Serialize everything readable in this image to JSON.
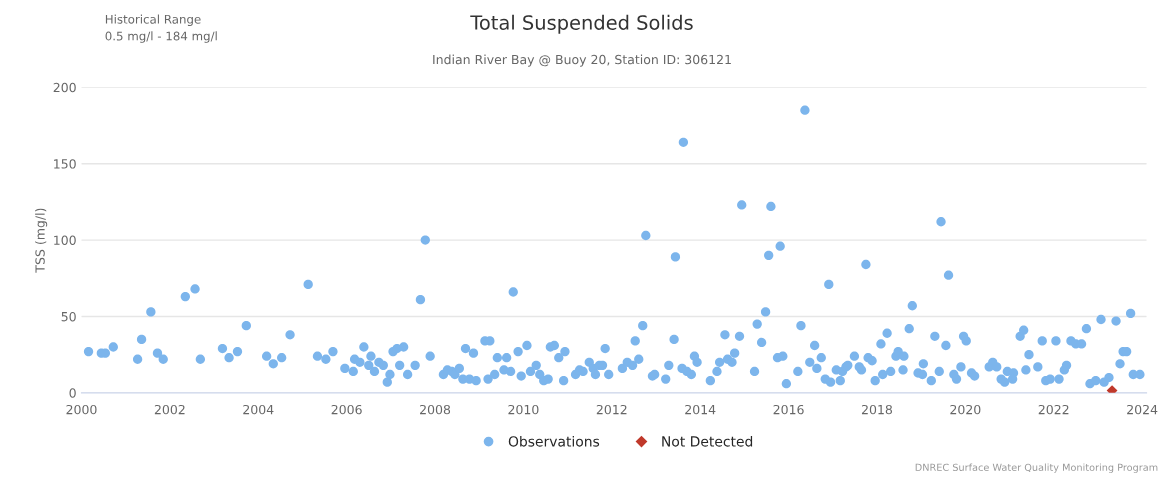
{
  "chart_data": {
    "type": "scatter",
    "title": "Total Suspended Solids",
    "subtitle": "Indian River Bay @ Buoy 20, Station ID: 306121",
    "ylabel": "TSS (mg/l)",
    "annotations": [
      "Historical Range\n0.5 mg/l - 184 mg/l",
      "DNREC Surface Water Quality Monitoring Program"
    ],
    "xlim": [
      2000,
      2024.1
    ],
    "xticks": [
      2000,
      2002,
      2004,
      2006,
      2008,
      2010,
      2012,
      2014,
      2016,
      2018,
      2020,
      2022,
      2024
    ],
    "ylim": [
      0,
      200
    ],
    "yticks": [
      0,
      50,
      100,
      150,
      200
    ],
    "grid": "y",
    "legend": "bottom",
    "series": [
      {
        "name": "Observations",
        "color": "#7cb5ec",
        "marker": "circle",
        "x": [
          2000.16,
          2000.45,
          2000.54,
          2000.72,
          2001.27,
          2001.36,
          2001.57,
          2001.72,
          2001.85,
          2002.35,
          2002.57,
          2002.69,
          2003.19,
          2003.34,
          2003.53,
          2003.73,
          2004.19,
          2004.34,
          2004.53,
          2004.72,
          2005.13,
          2005.34,
          2005.53,
          2005.69,
          2005.96,
          2006.15,
          2006.18,
          2006.3,
          2006.39,
          2006.5,
          2006.55,
          2006.63,
          2006.73,
          2006.83,
          2006.92,
          2006.98,
          2007.05,
          2007.14,
          2007.29,
          2007.2,
          2007.38,
          2007.55,
          2007.67,
          2007.78,
          2007.89,
          2008.19,
          2008.28,
          2008.38,
          2008.45,
          2008.55,
          2008.63,
          2008.69,
          2008.78,
          2008.87,
          2008.93,
          2009.13,
          2009.24,
          2009.2,
          2009.35,
          2009.41,
          2009.56,
          2009.62,
          2009.71,
          2009.77,
          2009.88,
          2009.95,
          2010.08,
          2010.16,
          2010.29,
          2010.37,
          2010.46,
          2010.56,
          2010.61,
          2010.7,
          2010.8,
          2010.94,
          2010.91,
          2011.18,
          2011.27,
          2011.35,
          2011.49,
          2011.58,
          2011.63,
          2011.72,
          2011.79,
          2011.85,
          2011.93,
          2012.24,
          2012.35,
          2012.47,
          2012.53,
          2012.61,
          2012.7,
          2012.77,
          2012.92,
          2012.97,
          2013.22,
          2013.29,
          2013.41,
          2013.44,
          2013.59,
          2013.62,
          2013.7,
          2013.8,
          2013.87,
          2013.93,
          2014.23,
          2014.38,
          2014.44,
          2014.56,
          2014.62,
          2014.72,
          2014.78,
          2014.89,
          2014.94,
          2015.23,
          2015.29,
          2015.39,
          2015.48,
          2015.55,
          2015.6,
          2015.75,
          2015.81,
          2015.87,
          2015.95,
          2016.21,
          2016.28,
          2016.37,
          2016.48,
          2016.59,
          2016.64,
          2016.74,
          2016.83,
          2016.91,
          2016.95,
          2017.08,
          2017.17,
          2017.22,
          2017.3,
          2017.34,
          2017.49,
          2017.6,
          2017.65,
          2017.75,
          2017.8,
          2017.89,
          2017.96,
          2018.09,
          2018.13,
          2018.23,
          2018.31,
          2018.43,
          2018.48,
          2018.61,
          2018.59,
          2018.73,
          2018.8,
          2018.93,
          2019.05,
          2019.03,
          2019.23,
          2019.31,
          2019.41,
          2019.45,
          2019.56,
          2019.62,
          2019.74,
          2019.8,
          2019.9,
          2019.96,
          2020.02,
          2020.14,
          2020.21,
          2020.54,
          2020.62,
          2020.71,
          2020.81,
          2020.89,
          2020.95,
          2021.09,
          2021.07,
          2021.24,
          2021.32,
          2021.37,
          2021.44,
          2021.64,
          2021.74,
          2021.82,
          2021.92,
          2022.05,
          2022.12,
          2022.24,
          2022.29,
          2022.39,
          2022.5,
          2022.63,
          2022.74,
          2022.82,
          2022.95,
          2023.07,
          2023.14,
          2023.25,
          2023.41,
          2023.5,
          2023.57,
          2023.65,
          2023.74,
          2023.8,
          2023.95
        ],
        "values": [
          27,
          26,
          26,
          30,
          22,
          35,
          53,
          26,
          22,
          63,
          68,
          22,
          29,
          23,
          27,
          44,
          24,
          19,
          23,
          38,
          71,
          24,
          22,
          27,
          16,
          14,
          22,
          20,
          30,
          18,
          24,
          14,
          20,
          18,
          7,
          12,
          27,
          29,
          30,
          18,
          12,
          18,
          61,
          100,
          24,
          12,
          15,
          14,
          12,
          16,
          9,
          29,
          9,
          26,
          8,
          34,
          34,
          9,
          12,
          23,
          15,
          23,
          14,
          66,
          27,
          11,
          31,
          14,
          18,
          12,
          8,
          9,
          30,
          31,
          23,
          27,
          8,
          12,
          15,
          14,
          20,
          16,
          12,
          18,
          18,
          29,
          12,
          16,
          20,
          18,
          34,
          22,
          44,
          103,
          11,
          12,
          9,
          18,
          35,
          89,
          16,
          164,
          14,
          12,
          24,
          20,
          8,
          14,
          20,
          38,
          22,
          20,
          26,
          37,
          123,
          14,
          45,
          33,
          53,
          90,
          122,
          23,
          96,
          24,
          6,
          14,
          44,
          185,
          20,
          31,
          16,
          23,
          9,
          71,
          7,
          15,
          8,
          14,
          17,
          18,
          24,
          17,
          15,
          84,
          23,
          21,
          8,
          32,
          12,
          39,
          14,
          24,
          27,
          24,
          15,
          42,
          57,
          13,
          19,
          12,
          8,
          37,
          14,
          112,
          31,
          77,
          12,
          9,
          17,
          37,
          34,
          13,
          11,
          17,
          20,
          17,
          9,
          7,
          14,
          13,
          9,
          37,
          41,
          15,
          25,
          17,
          34,
          8,
          9,
          34,
          9,
          15,
          18,
          34,
          32,
          32,
          42,
          6,
          8,
          48,
          7,
          10,
          47,
          19,
          27,
          27,
          52,
          12,
          12
        ]
      },
      {
        "name": "Not Detected",
        "color": "#c0392b",
        "marker": "diamond",
        "x": [
          2023.32
        ],
        "values": [
          1.5
        ]
      }
    ]
  }
}
